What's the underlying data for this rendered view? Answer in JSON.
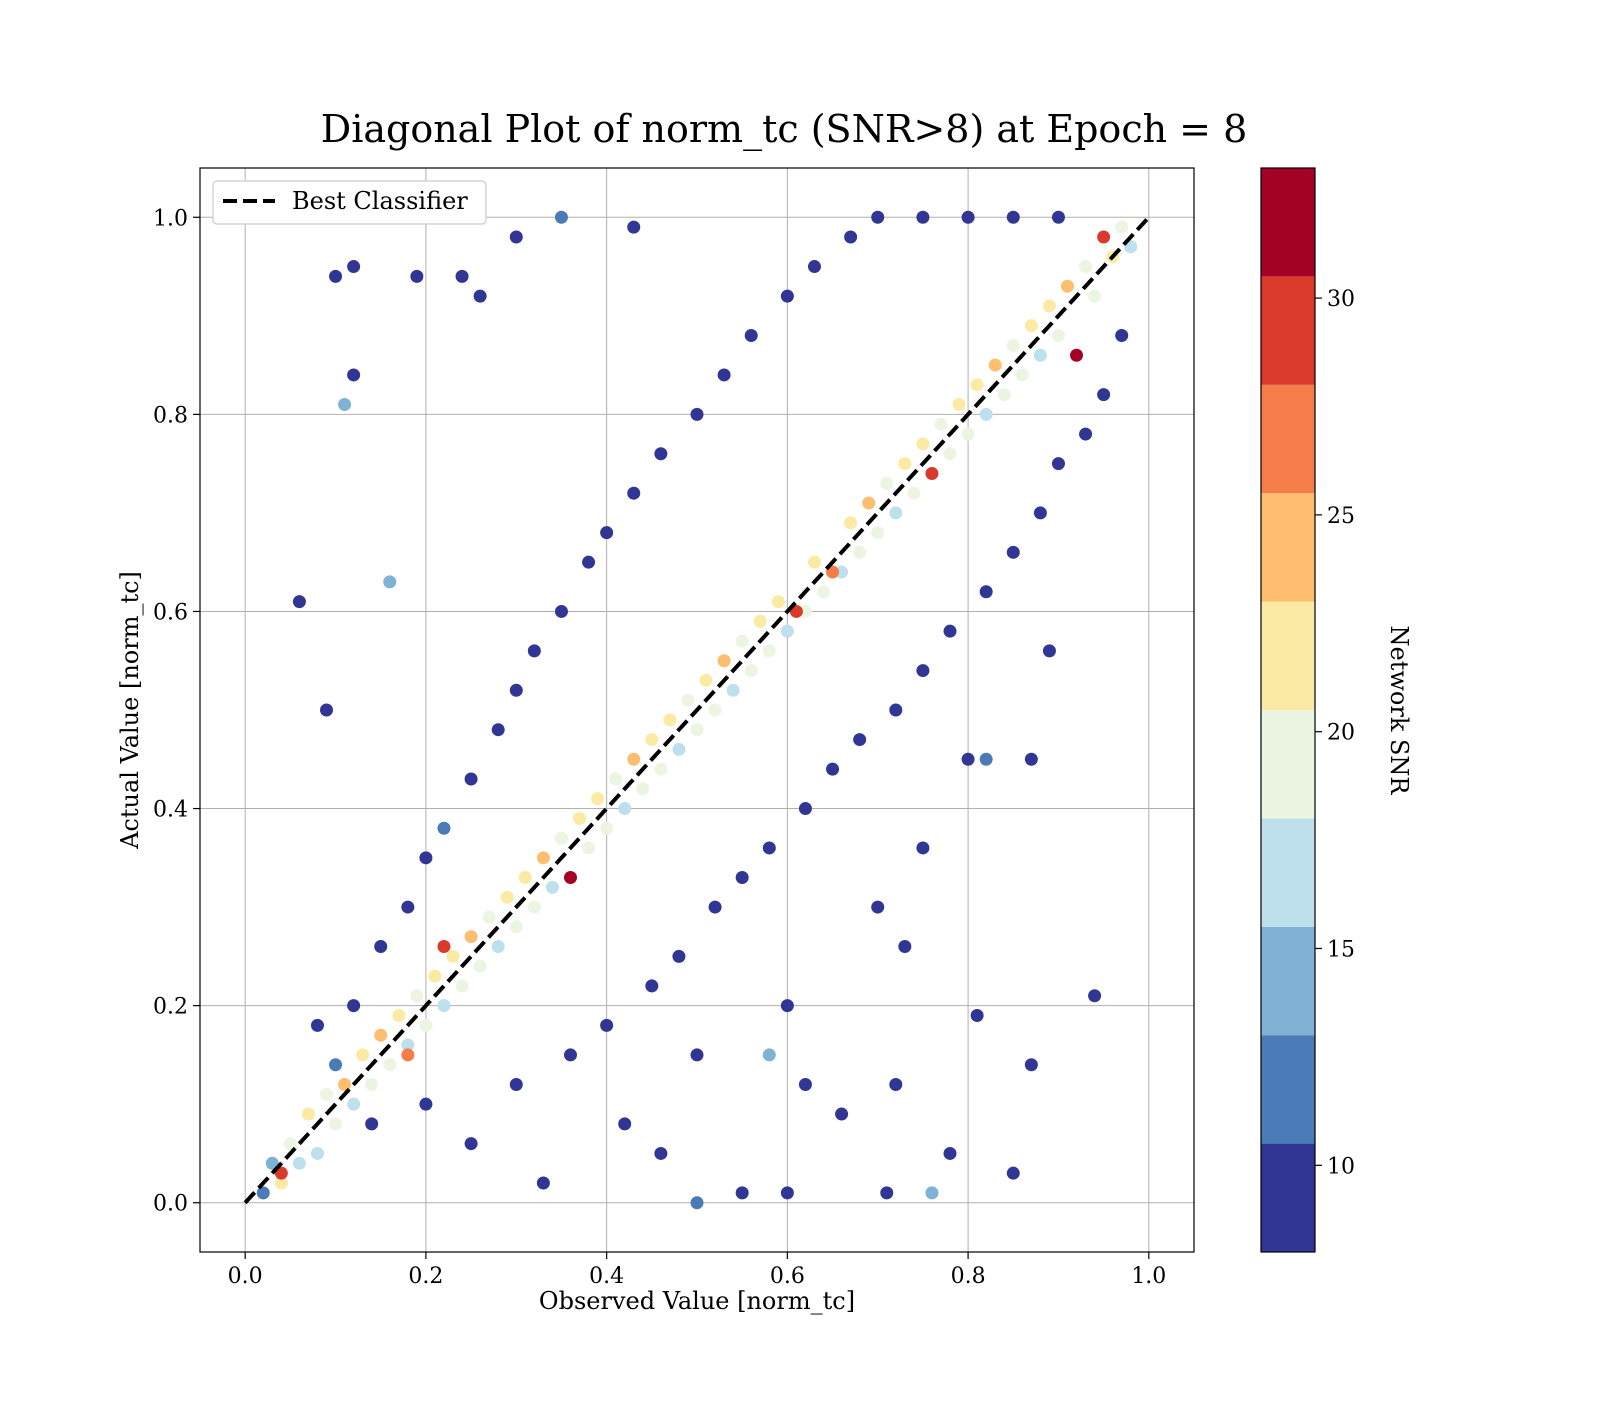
{
  "chart_data": {
    "type": "scatter",
    "title": "Diagonal Plot of norm_tc (SNR>8) at Epoch = 8",
    "xlabel": "Observed Value [norm_tc]",
    "ylabel": "Actual Value [norm_tc]",
    "xlim": [
      -0.05,
      1.05
    ],
    "ylim": [
      -0.05,
      1.05
    ],
    "x_ticks": [
      0.0,
      0.2,
      0.4,
      0.6,
      0.8,
      1.0
    ],
    "y_ticks": [
      0.0,
      0.2,
      0.4,
      0.6,
      0.8,
      1.0
    ],
    "x_tick_labels": [
      "0.0",
      "0.2",
      "0.4",
      "0.6",
      "0.8",
      "1.0"
    ],
    "y_tick_labels": [
      "0.0",
      "0.2",
      "0.4",
      "0.6",
      "0.8",
      "1.0"
    ],
    "grid": true,
    "legend": {
      "placement": "top-left",
      "entries": [
        {
          "label": "Best Classifier",
          "style": "dashed",
          "color": "#000000"
        }
      ]
    },
    "reference_line": {
      "name": "Best Classifier",
      "x": [
        0.0,
        1.0
      ],
      "y": [
        0.0,
        1.0
      ]
    },
    "colorbar": {
      "label": "Network SNR",
      "range": [
        8,
        33
      ],
      "ticks": [
        10,
        15,
        20,
        25,
        30
      ],
      "tick_labels": [
        "10",
        "15",
        "20",
        "25",
        "30"
      ],
      "bins": [
        {
          "from": 8,
          "to": 10.5,
          "color": "#313695"
        },
        {
          "from": 10.5,
          "to": 13,
          "color": "#4a7bb7"
        },
        {
          "from": 13,
          "to": 15.5,
          "color": "#7fb2d4"
        },
        {
          "from": 15.5,
          "to": 18,
          "color": "#bde0ec"
        },
        {
          "from": 18,
          "to": 20.5,
          "color": "#ebf5e1"
        },
        {
          "from": 20.5,
          "to": 23,
          "color": "#fbeaa3"
        },
        {
          "from": 23,
          "to": 25.5,
          "color": "#fdbe6f"
        },
        {
          "from": 25.5,
          "to": 28,
          "color": "#f57d4a"
        },
        {
          "from": 28,
          "to": 30.5,
          "color": "#d93a2b"
        },
        {
          "from": 30.5,
          "to": 33,
          "color": "#a50026"
        }
      ]
    },
    "series": [
      {
        "name": "Network SNR",
        "note_values": "representative sample of visible points: [x, y, snr]",
        "points": [
          [
            0.02,
            0.01,
            12
          ],
          [
            0.03,
            0.04,
            14
          ],
          [
            0.04,
            0.02,
            22
          ],
          [
            0.05,
            0.06,
            19
          ],
          [
            0.06,
            0.04,
            17
          ],
          [
            0.07,
            0.09,
            21
          ],
          [
            0.08,
            0.05,
            16
          ],
          [
            0.09,
            0.11,
            20
          ],
          [
            0.1,
            0.08,
            18
          ],
          [
            0.11,
            0.12,
            23
          ],
          [
            0.12,
            0.1,
            17
          ],
          [
            0.13,
            0.15,
            21
          ],
          [
            0.14,
            0.12,
            19
          ],
          [
            0.15,
            0.17,
            24
          ],
          [
            0.16,
            0.14,
            18
          ],
          [
            0.17,
            0.19,
            22
          ],
          [
            0.18,
            0.16,
            16
          ],
          [
            0.19,
            0.21,
            20
          ],
          [
            0.2,
            0.18,
            19
          ],
          [
            0.21,
            0.23,
            22
          ],
          [
            0.22,
            0.2,
            17
          ],
          [
            0.23,
            0.25,
            21
          ],
          [
            0.24,
            0.22,
            18
          ],
          [
            0.25,
            0.27,
            23
          ],
          [
            0.26,
            0.24,
            19
          ],
          [
            0.27,
            0.29,
            20
          ],
          [
            0.28,
            0.26,
            17
          ],
          [
            0.29,
            0.31,
            22
          ],
          [
            0.3,
            0.28,
            18
          ],
          [
            0.31,
            0.33,
            21
          ],
          [
            0.32,
            0.3,
            19
          ],
          [
            0.33,
            0.35,
            24
          ],
          [
            0.34,
            0.32,
            17
          ],
          [
            0.35,
            0.37,
            20
          ],
          [
            0.36,
            0.33,
            33
          ],
          [
            0.37,
            0.39,
            21
          ],
          [
            0.38,
            0.36,
            18
          ],
          [
            0.39,
            0.41,
            22
          ],
          [
            0.4,
            0.38,
            19
          ],
          [
            0.41,
            0.43,
            20
          ],
          [
            0.42,
            0.4,
            17
          ],
          [
            0.43,
            0.45,
            23
          ],
          [
            0.44,
            0.42,
            18
          ],
          [
            0.45,
            0.47,
            21
          ],
          [
            0.46,
            0.44,
            19
          ],
          [
            0.47,
            0.49,
            22
          ],
          [
            0.48,
            0.46,
            16
          ],
          [
            0.49,
            0.51,
            20
          ],
          [
            0.5,
            0.48,
            18
          ],
          [
            0.51,
            0.53,
            21
          ],
          [
            0.52,
            0.5,
            19
          ],
          [
            0.53,
            0.55,
            23
          ],
          [
            0.54,
            0.52,
            17
          ],
          [
            0.55,
            0.57,
            20
          ],
          [
            0.56,
            0.54,
            18
          ],
          [
            0.57,
            0.59,
            22
          ],
          [
            0.58,
            0.56,
            19
          ],
          [
            0.59,
            0.61,
            21
          ],
          [
            0.6,
            0.58,
            17
          ],
          [
            0.61,
            0.6,
            29
          ],
          [
            0.62,
            0.6,
            18
          ],
          [
            0.63,
            0.65,
            22
          ],
          [
            0.64,
            0.62,
            19
          ],
          [
            0.65,
            0.64,
            27
          ],
          [
            0.66,
            0.64,
            17
          ],
          [
            0.67,
            0.69,
            21
          ],
          [
            0.68,
            0.66,
            18
          ],
          [
            0.69,
            0.71,
            23
          ],
          [
            0.7,
            0.68,
            19
          ],
          [
            0.71,
            0.73,
            20
          ],
          [
            0.72,
            0.7,
            17
          ],
          [
            0.73,
            0.75,
            22
          ],
          [
            0.74,
            0.72,
            18
          ],
          [
            0.75,
            0.77,
            21
          ],
          [
            0.76,
            0.74,
            30
          ],
          [
            0.77,
            0.79,
            20
          ],
          [
            0.78,
            0.76,
            18
          ],
          [
            0.79,
            0.81,
            22
          ],
          [
            0.8,
            0.78,
            19
          ],
          [
            0.81,
            0.83,
            21
          ],
          [
            0.82,
            0.8,
            17
          ],
          [
            0.83,
            0.85,
            23
          ],
          [
            0.84,
            0.82,
            18
          ],
          [
            0.85,
            0.87,
            20
          ],
          [
            0.86,
            0.84,
            19
          ],
          [
            0.87,
            0.89,
            22
          ],
          [
            0.88,
            0.86,
            17
          ],
          [
            0.89,
            0.91,
            21
          ],
          [
            0.9,
            0.88,
            18
          ],
          [
            0.91,
            0.93,
            23
          ],
          [
            0.92,
            0.86,
            31
          ],
          [
            0.93,
            0.95,
            20
          ],
          [
            0.94,
            0.92,
            19
          ],
          [
            0.95,
            0.98,
            30
          ],
          [
            0.96,
            0.96,
            22
          ],
          [
            0.97,
            0.99,
            18
          ],
          [
            0.98,
            0.97,
            17
          ],
          [
            0.22,
            0.26,
            29
          ],
          [
            0.18,
            0.15,
            27
          ],
          [
            0.04,
            0.03,
            29
          ],
          [
            0.1,
            0.14,
            11
          ],
          [
            0.08,
            0.18,
            9
          ],
          [
            0.12,
            0.2,
            10
          ],
          [
            0.15,
            0.26,
            9
          ],
          [
            0.18,
            0.3,
            10
          ],
          [
            0.2,
            0.35,
            9
          ],
          [
            0.22,
            0.38,
            11
          ],
          [
            0.25,
            0.43,
            9
          ],
          [
            0.28,
            0.48,
            10
          ],
          [
            0.3,
            0.52,
            9
          ],
          [
            0.32,
            0.56,
            10
          ],
          [
            0.35,
            0.6,
            9
          ],
          [
            0.38,
            0.65,
            10
          ],
          [
            0.4,
            0.68,
            9
          ],
          [
            0.43,
            0.72,
            10
          ],
          [
            0.46,
            0.76,
            9
          ],
          [
            0.5,
            0.8,
            10
          ],
          [
            0.53,
            0.84,
            9
          ],
          [
            0.56,
            0.88,
            10
          ],
          [
            0.6,
            0.92,
            9
          ],
          [
            0.63,
            0.95,
            10
          ],
          [
            0.67,
            0.98,
            9
          ],
          [
            0.7,
            1.0,
            10
          ],
          [
            0.75,
            1.0,
            9
          ],
          [
            0.8,
            1.0,
            10
          ],
          [
            0.85,
            1.0,
            9
          ],
          [
            0.9,
            1.0,
            10
          ],
          [
            0.12,
            0.95,
            9
          ],
          [
            0.1,
            0.94,
            9
          ],
          [
            0.06,
            0.61,
            9
          ],
          [
            0.19,
            0.94,
            9
          ],
          [
            0.12,
            0.84,
            9
          ],
          [
            0.11,
            0.81,
            14
          ],
          [
            0.09,
            0.5,
            9
          ],
          [
            0.24,
            0.94,
            9
          ],
          [
            0.26,
            0.92,
            9
          ],
          [
            0.3,
            0.98,
            9
          ],
          [
            0.35,
            1.0,
            12
          ],
          [
            0.43,
            0.99,
            9
          ],
          [
            0.16,
            0.63,
            13
          ],
          [
            0.14,
            0.08,
            10
          ],
          [
            0.2,
            0.1,
            9
          ],
          [
            0.25,
            0.06,
            10
          ],
          [
            0.3,
            0.12,
            9
          ],
          [
            0.33,
            0.02,
            10
          ],
          [
            0.36,
            0.15,
            9
          ],
          [
            0.4,
            0.18,
            10
          ],
          [
            0.42,
            0.08,
            9
          ],
          [
            0.45,
            0.22,
            10
          ],
          [
            0.48,
            0.25,
            9
          ],
          [
            0.5,
            0.15,
            10
          ],
          [
            0.52,
            0.3,
            9
          ],
          [
            0.55,
            0.33,
            10
          ],
          [
            0.58,
            0.36,
            9
          ],
          [
            0.6,
            0.2,
            10
          ],
          [
            0.62,
            0.4,
            9
          ],
          [
            0.65,
            0.44,
            10
          ],
          [
            0.68,
            0.47,
            9
          ],
          [
            0.7,
            0.3,
            10
          ],
          [
            0.72,
            0.5,
            9
          ],
          [
            0.75,
            0.54,
            10
          ],
          [
            0.78,
            0.58,
            9
          ],
          [
            0.8,
            0.45,
            10
          ],
          [
            0.82,
            0.62,
            9
          ],
          [
            0.85,
            0.66,
            10
          ],
          [
            0.88,
            0.7,
            9
          ],
          [
            0.9,
            0.75,
            10
          ],
          [
            0.93,
            0.78,
            9
          ],
          [
            0.95,
            0.82,
            10
          ],
          [
            0.97,
            0.88,
            9
          ],
          [
            0.94,
            0.21,
            9
          ],
          [
            0.87,
            0.14,
            9
          ],
          [
            0.81,
            0.19,
            9
          ],
          [
            0.85,
            0.03,
            9
          ],
          [
            0.76,
            0.01,
            15
          ],
          [
            0.71,
            0.01,
            9
          ],
          [
            0.75,
            0.36,
            9
          ],
          [
            0.73,
            0.26,
            9
          ],
          [
            0.78,
            0.05,
            9
          ],
          [
            0.6,
            0.01,
            9
          ],
          [
            0.55,
            0.01,
            9
          ],
          [
            0.58,
            0.15,
            14
          ],
          [
            0.46,
            0.05,
            9
          ],
          [
            0.5,
            0.0,
            12
          ],
          [
            0.62,
            0.12,
            9
          ],
          [
            0.66,
            0.09,
            9
          ],
          [
            0.72,
            0.12,
            9
          ],
          [
            0.82,
            0.45,
            12
          ],
          [
            0.89,
            0.56,
            9
          ],
          [
            0.87,
            0.45,
            9
          ]
        ]
      }
    ]
  }
}
